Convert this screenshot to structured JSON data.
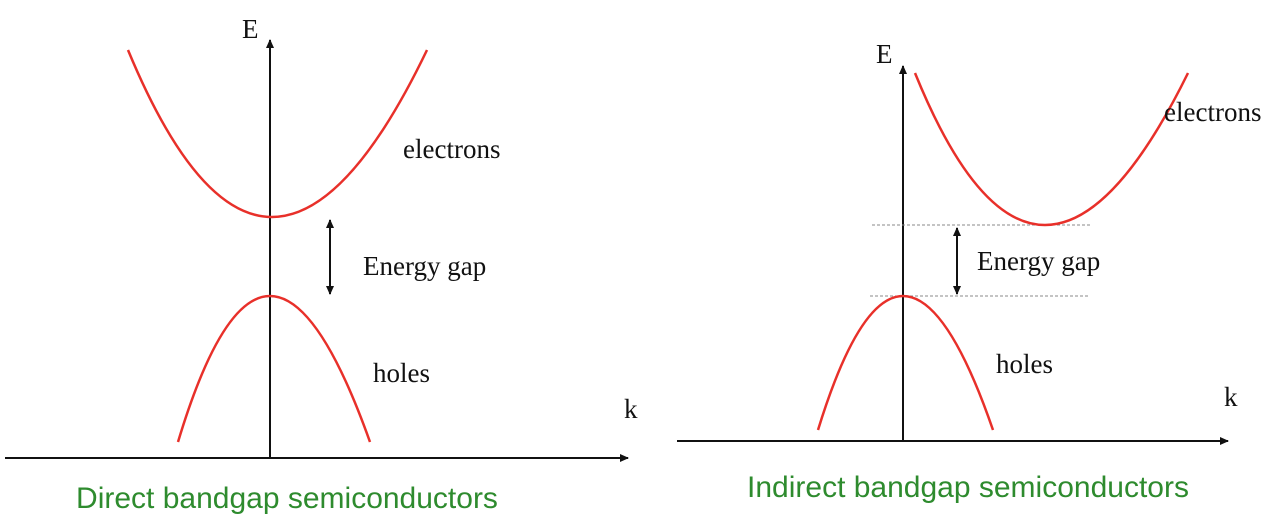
{
  "panels": [
    {
      "y_axis_label": "E",
      "x_axis_label": "k",
      "upper_band_label": "electrons",
      "gap_label": "Energy gap",
      "lower_band_label": "holes",
      "caption": "Direct bandgap semiconductors"
    },
    {
      "y_axis_label": "E",
      "x_axis_label": "k",
      "upper_band_label": "electrons",
      "gap_label": "Energy gap",
      "lower_band_label": "holes",
      "caption": "Indirect bandgap semiconductors"
    }
  ]
}
